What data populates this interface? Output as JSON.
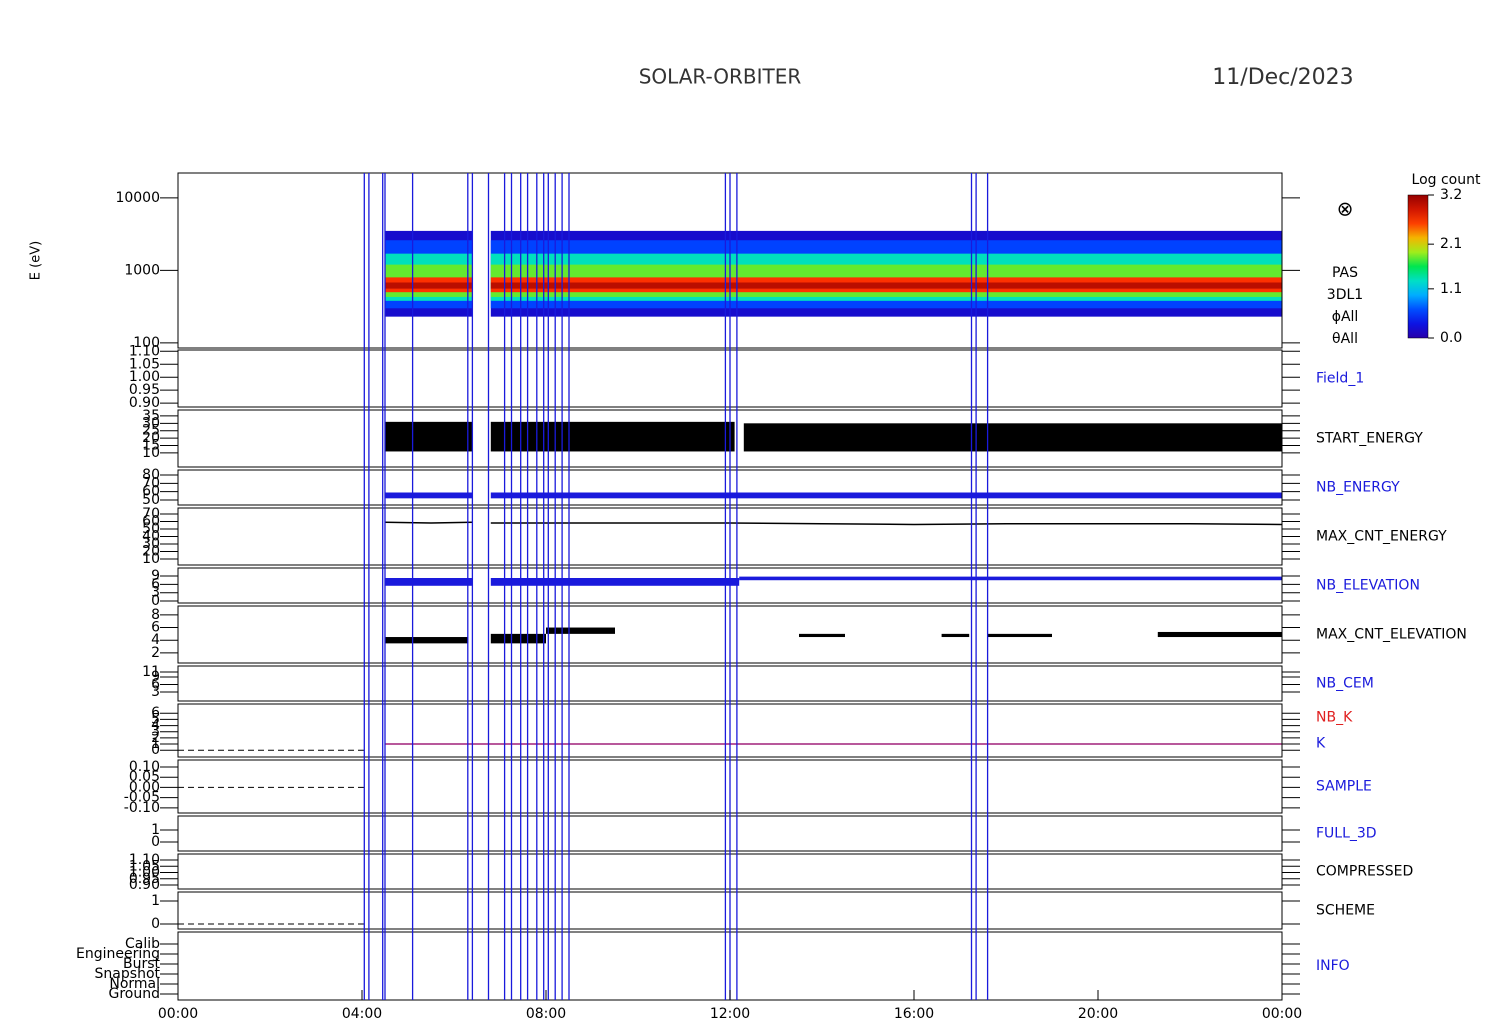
{
  "chart_data": {
    "type": "multi-panel",
    "title": "SOLAR-ORBITER",
    "date": "11/Dec/2023",
    "xlim": [
      0,
      24
    ],
    "xticks": [
      {
        "value": 0,
        "label": "00:00"
      },
      {
        "value": 4,
        "label": "04:00"
      },
      {
        "value": 8,
        "label": "08:00"
      },
      {
        "value": 12,
        "label": "12:00"
      },
      {
        "value": 16,
        "label": "16:00"
      },
      {
        "value": 20,
        "label": "20:00"
      },
      {
        "value": 24,
        "label": "00:00"
      }
    ],
    "events": [
      4.05,
      4.15,
      4.45,
      4.5,
      5.1,
      6.3,
      6.4,
      6.75,
      7.1,
      7.25,
      7.45,
      7.6,
      7.8,
      7.95,
      8.05,
      8.2,
      8.35,
      8.5,
      11.9,
      12.0,
      12.15,
      17.25,
      17.35,
      17.6
    ],
    "event_color": "#1a1adc",
    "colorbar": {
      "label": "Log count",
      "clim": [
        0,
        3.2
      ],
      "ticks": [
        {
          "value": 0,
          "label": "0.0"
        },
        1.1,
        2.1,
        3.2
      ]
    },
    "panels": [
      {
        "ylabel": "E (eV)",
        "log": true,
        "ylim": [
          85,
          22000
        ],
        "yticks": [
          100,
          1000,
          10000
        ],
        "symbol": "⊗",
        "labels": [
          {
            "text": "PAS",
            "color": "#000000"
          },
          {
            "text": "3DL1",
            "color": "#000000"
          },
          {
            "text": "ϕAll",
            "color": "#000000"
          },
          {
            "text": "θAll",
            "color": "#000000"
          }
        ],
        "spectrum": {
          "x": [
            [
              4.5,
              6.4
            ],
            [
              6.8,
              24
            ]
          ],
          "bands": [
            {
              "e": [
                230,
                3500
              ],
              "value": 0.2
            },
            {
              "e": [
                300,
                2600
              ],
              "value": 0.6
            },
            {
              "e": [
                380,
                1700
              ],
              "value": 1.3
            },
            {
              "e": [
                430,
                1200
              ],
              "value": 1.8
            },
            {
              "e": [
                500,
                800
              ],
              "value": 2.6
            },
            {
              "e": [
                560,
                680
              ],
              "value": 3.0
            }
          ]
        }
      },
      {
        "ylim": [
          0.885,
          1.105
        ],
        "yticks": [
          {
            "value": 0.9,
            "label": "0.90"
          },
          {
            "value": 0.95,
            "label": "0.95"
          },
          {
            "value": 1,
            "label": "1.00"
          },
          {
            "value": 1.05,
            "label": "1.05"
          },
          {
            "value": 1.1,
            "label": "1.10"
          }
        ],
        "labels": [
          {
            "text": "Field_1",
            "color": "#1a1adc"
          }
        ]
      },
      {
        "ylim": [
          0.5,
          39
        ],
        "yticks": [
          10,
          15,
          20,
          25,
          30,
          35
        ],
        "labels": [
          {
            "text": "START_ENERGY",
            "color": "#000000"
          }
        ],
        "fills": [
          {
            "x": [
              4.5,
              6.4
            ],
            "y": [
              11,
              31
            ],
            "color": "#000000"
          },
          {
            "x": [
              6.8,
              12.1
            ],
            "y": [
              11,
              31
            ],
            "color": "#000000"
          },
          {
            "x": [
              12.3,
              24
            ],
            "y": [
              11,
              30
            ],
            "color": "#000000"
          }
        ]
      },
      {
        "ylim": [
          44,
          86
        ],
        "yticks": [
          50,
          60,
          70,
          80
        ],
        "labels": [
          {
            "text": "NB_ENERGY",
            "color": "#1a1adc"
          }
        ],
        "fills": [
          {
            "x": [
              4.5,
              6.4
            ],
            "y": [
              52,
              59
            ],
            "color": "#1a1adc"
          },
          {
            "x": [
              6.8,
              24
            ],
            "y": [
              52,
              59
            ],
            "color": "#1a1adc"
          }
        ]
      },
      {
        "ylim": [
          2,
          78
        ],
        "yticks": [
          10,
          20,
          30,
          40,
          50,
          60,
          70
        ],
        "labels": [
          {
            "text": "MAX_CNT_ENERGY",
            "color": "#000000"
          }
        ],
        "lines": [
          {
            "x": [
              4.5,
              5.5,
              6.4
            ],
            "y": [
              59,
              58,
              59
            ],
            "color": "#000000"
          },
          {
            "x": [
              6.8,
              9,
              12,
              14,
              16,
              18,
              20,
              22,
              24
            ],
            "y": [
              58,
              58,
              58,
              57,
              56,
              57,
              57,
              57,
              56
            ],
            "color": "#000000"
          }
        ]
      },
      {
        "ylim": [
          -0.7,
          11.9
        ],
        "yticks": [
          0,
          3,
          6,
          9
        ],
        "labels": [
          {
            "text": "NB_ELEVATION",
            "color": "#1a1adc"
          }
        ],
        "fills": [
          {
            "x": [
              4.5,
              6.4
            ],
            "y": [
              5.5,
              8.3
            ],
            "color": "#1a1adc"
          },
          {
            "x": [
              6.8,
              12.2
            ],
            "y": [
              5.5,
              8.3
            ],
            "color": "#1a1adc"
          },
          {
            "x": [
              12.2,
              24
            ],
            "y": [
              7.5,
              8.8
            ],
            "color": "#1a1adc"
          }
        ]
      },
      {
        "ylim": [
          0.4,
          9.4
        ],
        "yticks": [
          2,
          4,
          6,
          8
        ],
        "labels": [
          {
            "text": "MAX_CNT_ELEVATION",
            "color": "#000000"
          }
        ],
        "fills": [
          {
            "x": [
              4.5,
              6.3
            ],
            "y": [
              3.5,
              4.5
            ],
            "color": "#000000"
          },
          {
            "x": [
              6.8,
              8.0
            ],
            "y": [
              3.5,
              5
            ],
            "color": "#000000"
          },
          {
            "x": [
              8.0,
              9.5
            ],
            "y": [
              5,
              6
            ],
            "color": "#000000"
          },
          {
            "x": [
              13.5,
              14.5
            ],
            "y": [
              4.5,
              5
            ],
            "color": "#000000"
          },
          {
            "x": [
              16.6,
              17.2
            ],
            "y": [
              4.5,
              5
            ],
            "color": "#000000"
          },
          {
            "x": [
              17.6,
              19
            ],
            "y": [
              4.5,
              5
            ],
            "color": "#000000"
          },
          {
            "x": [
              21.3,
              24
            ],
            "y": [
              4.5,
              5.3
            ],
            "color": "#000000"
          }
        ]
      },
      {
        "ylim": [
          -0.6,
          13.4
        ],
        "yticks": [
          3,
          6,
          9,
          11
        ],
        "labels": [
          {
            "text": "NB_CEM",
            "color": "#1a1adc"
          }
        ]
      },
      {
        "ylim": [
          -1.1,
          7.5
        ],
        "yticks": [
          0,
          1,
          2,
          3,
          4,
          5,
          6
        ],
        "labels": [
          {
            "text": "NB_K",
            "color": "#e02020"
          },
          {
            "text": "K",
            "color": "#1a1adc"
          }
        ],
        "lines": [
          {
            "x": [
              4.5,
              24
            ],
            "y": [
              1,
              1
            ],
            "color": "#a0207a"
          },
          {
            "x": [
              0,
              4.1
            ],
            "y": [
              0,
              0
            ],
            "color": "#000000",
            "dash": true
          }
        ]
      },
      {
        "ylim": [
          -0.125,
          0.134
        ],
        "yticks": [
          {
            "value": -0.1,
            "label": "-0.10"
          },
          {
            "value": -0.05,
            "label": "-0.05"
          },
          {
            "value": 0,
            "label": "0.00"
          },
          {
            "value": 0.05,
            "label": "0.05"
          },
          {
            "value": 0.1,
            "label": "0.10"
          }
        ],
        "labels": [
          {
            "text": "SAMPLE",
            "color": "#1a1adc"
          }
        ],
        "lines": [
          {
            "x": [
              0,
              4.1
            ],
            "y": [
              0,
              0
            ],
            "color": "#000000",
            "dash": true
          }
        ]
      },
      {
        "ylim": [
          -0.75,
          2.17
        ],
        "yticks": [
          0,
          1
        ],
        "labels": [
          {
            "text": "FULL_3D",
            "color": "#1a1adc"
          }
        ]
      },
      {
        "ylim": [
          0.868,
          1.148
        ],
        "yticks": [
          {
            "value": 0.9,
            "label": "0.90"
          },
          {
            "value": 0.95,
            "label": "0.95"
          },
          {
            "value": 1,
            "label": "1.00"
          },
          {
            "value": 1.05,
            "label": "1.05"
          },
          {
            "value": 1.1,
            "label": "1.10"
          }
        ],
        "labels": [
          {
            "text": "COMPRESSED",
            "color": "#000000"
          }
        ]
      },
      {
        "ylim": [
          -0.22,
          1.39
        ],
        "yticks": [
          0,
          1
        ],
        "labels": [
          {
            "text": "SCHEME",
            "color": "#000000"
          }
        ],
        "lines": [
          {
            "x": [
              0,
              4.1
            ],
            "y": [
              0,
              0
            ],
            "color": "#000000",
            "dash": true
          }
        ]
      },
      {
        "ylim": [
          -0.6,
          6.2
        ],
        "yticks": [
          {
            "value": 0,
            "label": "Ground"
          },
          {
            "value": 1,
            "label": "Normal"
          },
          {
            "value": 2,
            "label": "Snapshot"
          },
          {
            "value": 3,
            "label": "Burst"
          },
          {
            "value": 4,
            "label": "Engineering"
          },
          {
            "value": 5,
            "label": "Calib"
          }
        ],
        "labels": [
          {
            "text": "INFO",
            "color": "#1a1adc"
          }
        ]
      }
    ]
  }
}
